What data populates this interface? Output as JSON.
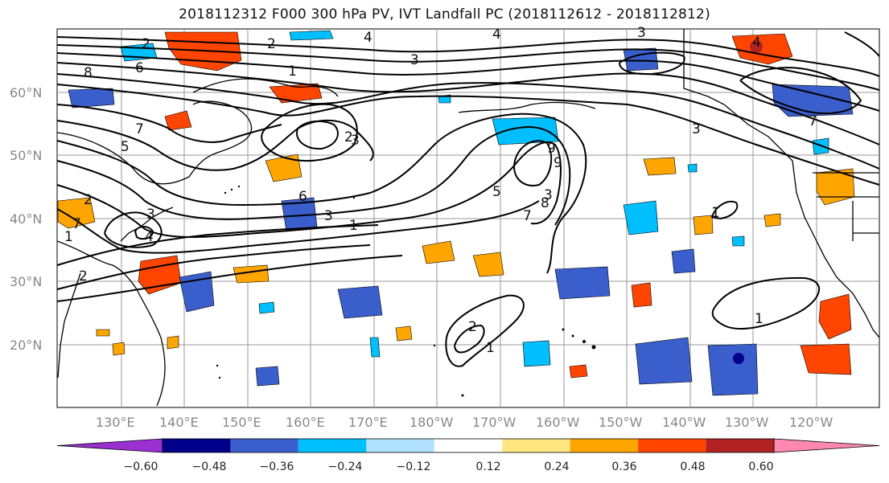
{
  "title": "2018112312 F000 300 hPa PV, IVT Landfall PC (2018112612 - 2018112812)",
  "lat_labels": [
    "60°N",
    "50°N",
    "40°N",
    "30°N",
    "20°N"
  ],
  "lon_labels": [
    "130°E",
    "140°E",
    "150°E",
    "160°E",
    "170°E",
    "180°W",
    "170°W",
    "160°W",
    "150°W",
    "140°W",
    "130°W",
    "120°W"
  ],
  "contour_labels": [
    "2",
    "6",
    "8",
    "7",
    "5",
    "2",
    "1",
    "7",
    "3",
    "4",
    "3",
    "2",
    "1",
    "2",
    "6",
    "3",
    "1",
    "5",
    "9",
    "9",
    "3",
    "8",
    "7",
    "4",
    "4",
    "3",
    "3",
    "4",
    "3",
    "7",
    "1",
    "2",
    "1",
    "1",
    "2"
  ],
  "colorbar": {
    "tick_labels": [
      "−0.60",
      "−0.48",
      "−0.36",
      "−0.24",
      "−0.12",
      "0.12",
      "0.24",
      "0.36",
      "0.48",
      "0.60"
    ],
    "colors": [
      "#9b30d0",
      "#00008b",
      "#3a5fcd",
      "#00bfff",
      "#b0e2ff",
      "#ffffff",
      "#ffe680",
      "#ffa500",
      "#ff4500",
      "#b22222",
      "#ff88b0"
    ]
  },
  "legend_colors": {
    "neg_strong": "#3a5fcd",
    "neg_mid": "#00bfff",
    "neg_weak": "#b0e2ff",
    "pos_weak": "#ffe680",
    "pos_mid": "#ffa500",
    "pos_strong": "#ff4500",
    "pos_max": "#b22222"
  }
}
